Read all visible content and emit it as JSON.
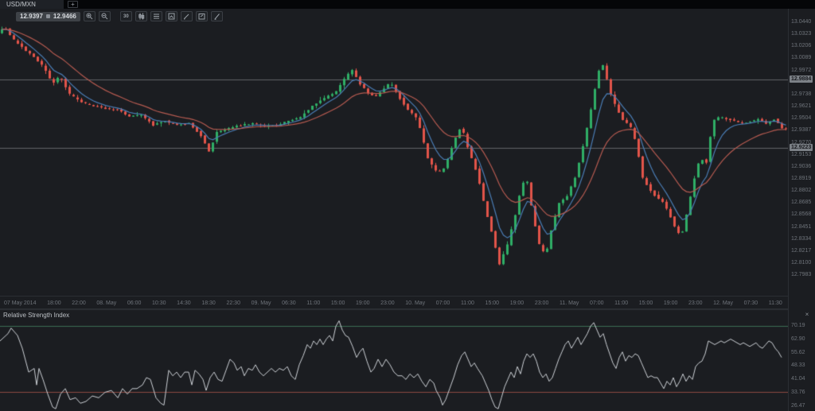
{
  "window": {
    "active_tab": "USD/MXN",
    "new_tab_label": "+"
  },
  "toolbar": {
    "bid": "12.9397",
    "ask": "12.9466",
    "buttons": [
      {
        "icon": "zoom-in-icon"
      },
      {
        "icon": "zoom-out-icon"
      },
      {
        "icon": "timeframe-30-icon",
        "label": "30"
      },
      {
        "icon": "chart-type-icon"
      },
      {
        "icon": "indicators-icon"
      },
      {
        "icon": "compare-icon"
      },
      {
        "icon": "draw-icon"
      },
      {
        "icon": "annotate-icon"
      },
      {
        "icon": "tools-icon"
      }
    ]
  },
  "colors": {
    "background": "#1b1d21",
    "candle_up": "#2fae66",
    "candle_down": "#e2544a",
    "ma_fast": "#4a7db5",
    "ma_slow": "#b55a50",
    "level_line": "#9a9da2",
    "rsi_line": "#ccd0d5",
    "rsi_upper": "#3c6e54",
    "rsi_lower": "#8c4a42",
    "axis_text": "#6f747b"
  },
  "chart_data": {
    "type": "candlestick",
    "symbol": "USD/MXN",
    "timeframe_minutes": 30,
    "legend_position": "none",
    "grid": "horizontal-levels-only",
    "price_axis_ticks": [
      "13.0440",
      "13.0323",
      "13.0206",
      "13.0089",
      "12.9972",
      "12.9738",
      "12.9621",
      "12.9504",
      "12.9387",
      "12.9270",
      "12.9153",
      "12.9036",
      "12.8919",
      "12.8802",
      "12.8685",
      "12.8568",
      "12.8451",
      "12.8334",
      "12.8217",
      "12.8100",
      "12.7983"
    ],
    "highlighted_prices": [
      "12.9884",
      "12.9223"
    ],
    "x_labels": [
      "07 May 2014",
      "18:00",
      "22:00",
      "08. May",
      "06:00",
      "10:30",
      "14:30",
      "18:30",
      "22:30",
      "09. May",
      "06:30",
      "11:00",
      "15:00",
      "19:00",
      "23:00",
      "10. May",
      "07:00",
      "11:00",
      "15:00",
      "19:00",
      "23:00",
      "11. May",
      "07:00",
      "11:00",
      "15:00",
      "19:00",
      "23:00",
      "12. May",
      "07:30",
      "11:30"
    ],
    "price_path": [
      [
        0,
        13.034
      ],
      [
        8,
        13.04
      ],
      [
        18,
        13.028
      ],
      [
        30,
        13.02
      ],
      [
        45,
        13.01
      ],
      [
        58,
        13.0
      ],
      [
        68,
        12.984
      ],
      [
        78,
        12.992
      ],
      [
        90,
        12.974
      ],
      [
        105,
        12.966
      ],
      [
        120,
        12.963
      ],
      [
        135,
        12.96
      ],
      [
        150,
        12.959
      ],
      [
        165,
        12.952
      ],
      [
        180,
        12.954
      ],
      [
        195,
        12.944
      ],
      [
        210,
        12.948
      ],
      [
        225,
        12.944
      ],
      [
        240,
        12.946
      ],
      [
        255,
        12.934
      ],
      [
        265,
        12.918
      ],
      [
        275,
        12.937
      ],
      [
        290,
        12.941
      ],
      [
        305,
        12.944
      ],
      [
        320,
        12.946
      ],
      [
        335,
        12.943
      ],
      [
        350,
        12.944
      ],
      [
        365,
        12.948
      ],
      [
        380,
        12.952
      ],
      [
        395,
        12.963
      ],
      [
        410,
        12.97
      ],
      [
        425,
        12.977
      ],
      [
        438,
        12.992
      ],
      [
        445,
        12.997
      ],
      [
        455,
        12.984
      ],
      [
        465,
        12.975
      ],
      [
        475,
        12.972
      ],
      [
        485,
        12.98
      ],
      [
        493,
        12.986
      ],
      [
        505,
        12.97
      ],
      [
        515,
        12.959
      ],
      [
        527,
        12.95
      ],
      [
        540,
        12.912
      ],
      [
        552,
        12.897
      ],
      [
        562,
        12.904
      ],
      [
        572,
        12.926
      ],
      [
        582,
        12.944
      ],
      [
        592,
        12.918
      ],
      [
        602,
        12.897
      ],
      [
        612,
        12.864
      ],
      [
        622,
        12.835
      ],
      [
        630,
        12.809
      ],
      [
        640,
        12.828
      ],
      [
        650,
        12.857
      ],
      [
        658,
        12.886
      ],
      [
        664,
        12.893
      ],
      [
        672,
        12.857
      ],
      [
        680,
        12.828
      ],
      [
        688,
        12.817
      ],
      [
        695,
        12.842
      ],
      [
        705,
        12.868
      ],
      [
        715,
        12.875
      ],
      [
        725,
        12.893
      ],
      [
        735,
        12.923
      ],
      [
        745,
        12.959
      ],
      [
        752,
        12.988
      ],
      [
        758,
        13.007
      ],
      [
        764,
        12.992
      ],
      [
        770,
        12.974
      ],
      [
        778,
        12.959
      ],
      [
        786,
        12.948
      ],
      [
        794,
        12.944
      ],
      [
        802,
        12.926
      ],
      [
        810,
        12.893
      ],
      [
        818,
        12.882
      ],
      [
        826,
        12.875
      ],
      [
        834,
        12.871
      ],
      [
        842,
        12.86
      ],
      [
        850,
        12.846
      ],
      [
        858,
        12.835
      ],
      [
        866,
        12.86
      ],
      [
        874,
        12.89
      ],
      [
        882,
        12.912
      ],
      [
        890,
        12.908
      ],
      [
        898,
        12.948
      ],
      [
        906,
        12.952
      ],
      [
        915,
        12.95
      ],
      [
        925,
        12.948
      ],
      [
        935,
        12.946
      ],
      [
        945,
        12.948
      ],
      [
        955,
        12.95
      ],
      [
        965,
        12.946
      ],
      [
        975,
        12.95
      ],
      [
        985,
        12.941
      ]
    ],
    "overlays": [
      {
        "name": "ma-fast",
        "period": 6,
        "color": "#4a7db5"
      },
      {
        "name": "ma-slow",
        "period": 18,
        "color": "#b55a50"
      }
    ],
    "rsi": {
      "title": "Relative Strength Index",
      "ticks": [
        "70.19",
        "62.90",
        "55.62",
        "48.33",
        "41.04",
        "33.76",
        "26.47"
      ],
      "levels": [
        70,
        30
      ],
      "path": [
        [
          0,
          62
        ],
        [
          10,
          66
        ],
        [
          14,
          69
        ],
        [
          22,
          65
        ],
        [
          28,
          58
        ],
        [
          36,
          45
        ],
        [
          43,
          47
        ],
        [
          46,
          38
        ],
        [
          49,
          47
        ],
        [
          54,
          41
        ],
        [
          60,
          33
        ],
        [
          66,
          26
        ],
        [
          70,
          25
        ],
        [
          76,
          33
        ],
        [
          82,
          36
        ],
        [
          88,
          30
        ],
        [
          95,
          31
        ],
        [
          101,
          28
        ],
        [
          108,
          29
        ],
        [
          116,
          32
        ],
        [
          124,
          31
        ],
        [
          132,
          34
        ],
        [
          140,
          35
        ],
        [
          148,
          31
        ],
        [
          154,
          36
        ],
        [
          160,
          33
        ],
        [
          166,
          36
        ],
        [
          172,
          36
        ],
        [
          179,
          38
        ],
        [
          184,
          42
        ],
        [
          189,
          41
        ],
        [
          196,
          31
        ],
        [
          202,
          28
        ],
        [
          206,
          27
        ],
        [
          212,
          46
        ],
        [
          217,
          43
        ],
        [
          222,
          45
        ],
        [
          227,
          42
        ],
        [
          232,
          45
        ],
        [
          237,
          45
        ],
        [
          241,
          38
        ],
        [
          245,
          46
        ],
        [
          250,
          44
        ],
        [
          255,
          41
        ],
        [
          259,
          35
        ],
        [
          264,
          42
        ],
        [
          269,
          45
        ],
        [
          274,
          41
        ],
        [
          279,
          40
        ],
        [
          284,
          46
        ],
        [
          289,
          52
        ],
        [
          294,
          50
        ],
        [
          298,
          46
        ],
        [
          303,
          48
        ],
        [
          307,
          43
        ],
        [
          312,
          47
        ],
        [
          317,
          46
        ],
        [
          321,
          49
        ],
        [
          326,
          45
        ],
        [
          331,
          43
        ],
        [
          336,
          45
        ],
        [
          341,
          47
        ],
        [
          346,
          45
        ],
        [
          351,
          47
        ],
        [
          356,
          46
        ],
        [
          361,
          48
        ],
        [
          366,
          43
        ],
        [
          371,
          41
        ],
        [
          376,
          49
        ],
        [
          381,
          54
        ],
        [
          386,
          60
        ],
        [
          390,
          58
        ],
        [
          394,
          62
        ],
        [
          398,
          60
        ],
        [
          402,
          63
        ],
        [
          406,
          60
        ],
        [
          410,
          63
        ],
        [
          414,
          65
        ],
        [
          418,
          62
        ],
        [
          422,
          70
        ],
        [
          426,
          73
        ],
        [
          430,
          68
        ],
        [
          434,
          65
        ],
        [
          438,
          64
        ],
        [
          443,
          59
        ],
        [
          448,
          53
        ],
        [
          452,
          56
        ],
        [
          456,
          58
        ],
        [
          461,
          51
        ],
        [
          466,
          45
        ],
        [
          470,
          47
        ],
        [
          475,
          52
        ],
        [
          480,
          48
        ],
        [
          485,
          52
        ],
        [
          490,
          49
        ],
        [
          495,
          45
        ],
        [
          500,
          43
        ],
        [
          505,
          43
        ],
        [
          510,
          41
        ],
        [
          515,
          44
        ],
        [
          520,
          42
        ],
        [
          525,
          44
        ],
        [
          530,
          40
        ],
        [
          535,
          37
        ],
        [
          540,
          41
        ],
        [
          545,
          39
        ],
        [
          548,
          35
        ],
        [
          553,
          31
        ],
        [
          556,
          27
        ],
        [
          560,
          30
        ],
        [
          565,
          36
        ],
        [
          570,
          42
        ],
        [
          575,
          49
        ],
        [
          580,
          54
        ],
        [
          584,
          56
        ],
        [
          588,
          52
        ],
        [
          592,
          48
        ],
        [
          596,
          50
        ],
        [
          600,
          47
        ],
        [
          606,
          43
        ],
        [
          610,
          39
        ],
        [
          614,
          35
        ],
        [
          618,
          30
        ],
        [
          622,
          26
        ],
        [
          626,
          25
        ],
        [
          630,
          31
        ],
        [
          634,
          37
        ],
        [
          638,
          41
        ],
        [
          642,
          45
        ],
        [
          646,
          42
        ],
        [
          650,
          48
        ],
        [
          654,
          44
        ],
        [
          658,
          51
        ],
        [
          662,
          55
        ],
        [
          666,
          53
        ],
        [
          670,
          55
        ],
        [
          674,
          51
        ],
        [
          678,
          45
        ],
        [
          682,
          42
        ],
        [
          686,
          44
        ],
        [
          690,
          40
        ],
        [
          694,
          42
        ],
        [
          698,
          47
        ],
        [
          702,
          52
        ],
        [
          706,
          56
        ],
        [
          710,
          60
        ],
        [
          714,
          62
        ],
        [
          718,
          58
        ],
        [
          722,
          61
        ],
        [
          726,
          64
        ],
        [
          730,
          60
        ],
        [
          734,
          63
        ],
        [
          738,
          66
        ],
        [
          742,
          70
        ],
        [
          746,
          72
        ],
        [
          750,
          68
        ],
        [
          754,
          64
        ],
        [
          758,
          66
        ],
        [
          762,
          60
        ],
        [
          766,
          55
        ],
        [
          770,
          50
        ],
        [
          774,
          47
        ],
        [
          778,
          53
        ],
        [
          782,
          56
        ],
        [
          786,
          51
        ],
        [
          790,
          54
        ],
        [
          794,
          53
        ],
        [
          798,
          55
        ],
        [
          802,
          54
        ],
        [
          806,
          50
        ],
        [
          810,
          46
        ],
        [
          814,
          42
        ],
        [
          818,
          43
        ],
        [
          822,
          42
        ],
        [
          826,
          42
        ],
        [
          830,
          39
        ],
        [
          834,
          36
        ],
        [
          838,
          40
        ],
        [
          842,
          38
        ],
        [
          846,
          42
        ],
        [
          850,
          37
        ],
        [
          854,
          40
        ],
        [
          858,
          44
        ],
        [
          862,
          40
        ],
        [
          866,
          43
        ],
        [
          870,
          41
        ],
        [
          874,
          48
        ],
        [
          878,
          50
        ],
        [
          882,
          51
        ],
        [
          886,
          55
        ],
        [
          890,
          62
        ],
        [
          894,
          61
        ],
        [
          898,
          60
        ],
        [
          902,
          61
        ],
        [
          906,
          62
        ],
        [
          910,
          61
        ],
        [
          914,
          62
        ],
        [
          918,
          63
        ],
        [
          922,
          62
        ],
        [
          926,
          61
        ],
        [
          930,
          60
        ],
        [
          934,
          61
        ],
        [
          938,
          60
        ],
        [
          942,
          59
        ],
        [
          946,
          60
        ],
        [
          950,
          61
        ],
        [
          954,
          59
        ],
        [
          958,
          58
        ],
        [
          962,
          60
        ],
        [
          966,
          62
        ],
        [
          970,
          61
        ],
        [
          974,
          58
        ],
        [
          978,
          56
        ],
        [
          982,
          53
        ]
      ],
      "close_label": "×"
    }
  }
}
